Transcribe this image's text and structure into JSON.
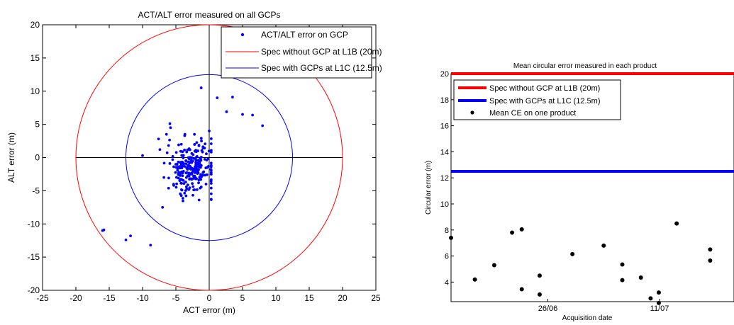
{
  "chart_data": [
    {
      "type": "scatter",
      "title": "ACT/ALT error  measured on all GCPs",
      "xlabel": "ACT error (m)",
      "ylabel": "ALT error (m)",
      "xlim": [
        -25,
        25
      ],
      "ylim": [
        -20,
        20
      ],
      "xticks": [
        -25,
        -20,
        -15,
        -10,
        -5,
        0,
        5,
        10,
        15,
        20,
        25
      ],
      "yticks": [
        -20,
        -15,
        -10,
        -5,
        0,
        5,
        10,
        15,
        20
      ],
      "legend_position": "top-right",
      "legend": [
        {
          "label": "ACT/ALT error on GCP",
          "kind": "marker",
          "color": "#0000ff"
        },
        {
          "label": "Spec without GCP at L1B (20m)",
          "kind": "line",
          "color": "#ff0000"
        },
        {
          "label": "Spec with GCPs at L1C (12.5m)",
          "kind": "line",
          "color": "#0000ff"
        }
      ],
      "circles": [
        {
          "name": "Spec without GCP at L1B (20m)",
          "radius": 20,
          "color": "#ff0000"
        },
        {
          "name": "Spec with GCPs at L1C (12.5m)",
          "radius": 12.5,
          "color": "#0000ff"
        }
      ],
      "outliers": [
        [
          -16,
          -11
        ],
        [
          -15.8,
          -10.9
        ],
        [
          -12.5,
          -12.4
        ],
        [
          -11.8,
          -11.8
        ],
        [
          -8.8,
          -13.2
        ],
        [
          -10,
          0.3
        ],
        [
          -7.6,
          2.8
        ],
        [
          -7.4,
          1.2
        ],
        [
          -5.9,
          5.1
        ],
        [
          -5.8,
          4.5
        ],
        [
          -1.2,
          10.5
        ],
        [
          1.2,
          9.0
        ],
        [
          2.6,
          6.9
        ],
        [
          3.5,
          9.1
        ],
        [
          5,
          6.5
        ],
        [
          6.5,
          6.4
        ],
        [
          8,
          4.8
        ],
        [
          0,
          4
        ]
      ],
      "cluster": {
        "count": 260,
        "center": [
          -2.7,
          -1.6
        ],
        "spread": [
          1.8,
          2.0
        ],
        "seed": 7
      }
    },
    {
      "type": "scatter",
      "title": "Mean circular error measured in each product",
      "xlabel": "Acquisition date",
      "ylabel": "Circular error (m)",
      "xticks": [
        "26/06",
        "11/07"
      ],
      "xrange_days": [
        0,
        38
      ],
      "xtick_days": [
        13,
        28
      ],
      "ylim": [
        2.5,
        20
      ],
      "yticks": [
        4,
        6,
        8,
        10,
        12,
        14,
        16,
        18,
        20
      ],
      "legend_position": "top-left",
      "legend": [
        {
          "label": "Spec without GCP at L1B (20m)",
          "kind": "thick-line",
          "color": "#ff0000"
        },
        {
          "label": "Spec with GCPs at L1C (12.5m)",
          "kind": "thick-line",
          "color": "#0000ff"
        },
        {
          "label": "Mean CE on one product",
          "kind": "marker",
          "color": "#000000"
        }
      ],
      "hlines": [
        {
          "name": "Spec without GCP at L1B (20m)",
          "value": 20,
          "color": "#ff0000"
        },
        {
          "name": "Spec with GCPs at L1C (12.5m)",
          "value": 12.5,
          "color": "#0000ff"
        }
      ],
      "points": [
        [
          0,
          7.4
        ],
        [
          3.2,
          4.2
        ],
        [
          5.8,
          5.3
        ],
        [
          8.2,
          7.8
        ],
        [
          9.5,
          8.05
        ],
        [
          9.5,
          3.45
        ],
        [
          11.9,
          4.5
        ],
        [
          11.9,
          3.05
        ],
        [
          16.3,
          6.15
        ],
        [
          20.5,
          6.8
        ],
        [
          23,
          5.35
        ],
        [
          23,
          4.15
        ],
        [
          25.5,
          4.35
        ],
        [
          26.8,
          2.75
        ],
        [
          27.9,
          3.2
        ],
        [
          27.9,
          2.4
        ],
        [
          30.3,
          8.5
        ],
        [
          34.8,
          6.5
        ],
        [
          34.8,
          5.65
        ]
      ]
    }
  ]
}
